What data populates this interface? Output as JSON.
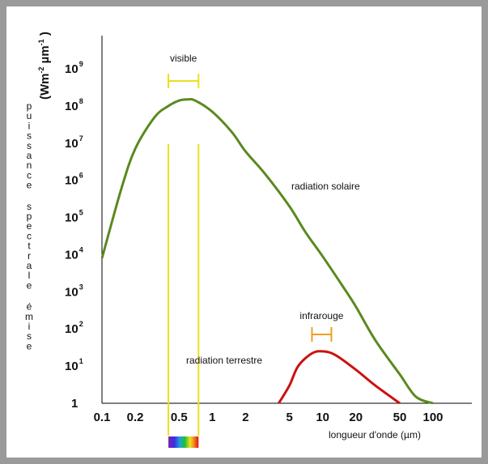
{
  "chart_data": {
    "type": "line",
    "title": "",
    "xlabel": "longueur d'onde (µm)",
    "ylabel": "puissance spectrale émise",
    "ylabel_unit": "(Wm-2 µm-1 )",
    "x_scale": "log",
    "y_scale": "log",
    "xlim": [
      0.1,
      100
    ],
    "ylim": [
      1,
      1000000000
    ],
    "x_ticks": [
      "0.1",
      "0.2",
      "0.5",
      "1",
      "2",
      "5",
      "10",
      "20",
      "50",
      "100"
    ],
    "x_tick_values": [
      0.1,
      0.2,
      0.5,
      1,
      2,
      5,
      10,
      20,
      50,
      100
    ],
    "y_ticks": [
      {
        "base": "1",
        "exp": ""
      },
      {
        "base": "10",
        "exp": "1"
      },
      {
        "base": "10",
        "exp": "2"
      },
      {
        "base": "10",
        "exp": "3"
      },
      {
        "base": "10",
        "exp": "4"
      },
      {
        "base": "10",
        "exp": "5"
      },
      {
        "base": "10",
        "exp": "6"
      },
      {
        "base": "10",
        "exp": "7"
      },
      {
        "base": "10",
        "exp": "8"
      },
      {
        "base": "10",
        "exp": "9"
      }
    ],
    "grid": false,
    "series": [
      {
        "name": "radiation solaire",
        "color": "#5a8a1e",
        "points": [
          [
            0.1,
            8000
          ],
          [
            0.15,
            600000
          ],
          [
            0.2,
            7000000
          ],
          [
            0.3,
            50000000
          ],
          [
            0.4,
            100000000
          ],
          [
            0.5,
            140000000
          ],
          [
            0.6,
            150000000
          ],
          [
            0.7,
            140000000
          ],
          [
            1,
            70000000
          ],
          [
            1.5,
            20000000
          ],
          [
            2,
            6000000
          ],
          [
            3,
            1500000
          ],
          [
            5,
            200000
          ],
          [
            7,
            40000
          ],
          [
            10,
            9000
          ],
          [
            15,
            1500
          ],
          [
            20,
            400
          ],
          [
            30,
            50
          ],
          [
            50,
            6
          ],
          [
            70,
            1.5
          ],
          [
            100,
            1
          ]
        ]
      },
      {
        "name": "radiation terrestre",
        "color": "#cc1111",
        "points": [
          [
            4,
            1
          ],
          [
            5,
            3
          ],
          [
            6,
            10
          ],
          [
            8,
            22
          ],
          [
            10,
            25
          ],
          [
            13,
            20
          ],
          [
            20,
            8
          ],
          [
            30,
            3
          ],
          [
            50,
            1
          ]
        ]
      }
    ],
    "annotations": [
      {
        "text": "visible",
        "color": "#e8e020",
        "range": [
          0.4,
          0.75
        ]
      },
      {
        "text": "infrarouge",
        "color": "#f0a020",
        "range": [
          8,
          12
        ]
      }
    ],
    "visible_band": {
      "x": [
        0.4,
        0.75
      ],
      "color": "#e8e020"
    }
  }
}
